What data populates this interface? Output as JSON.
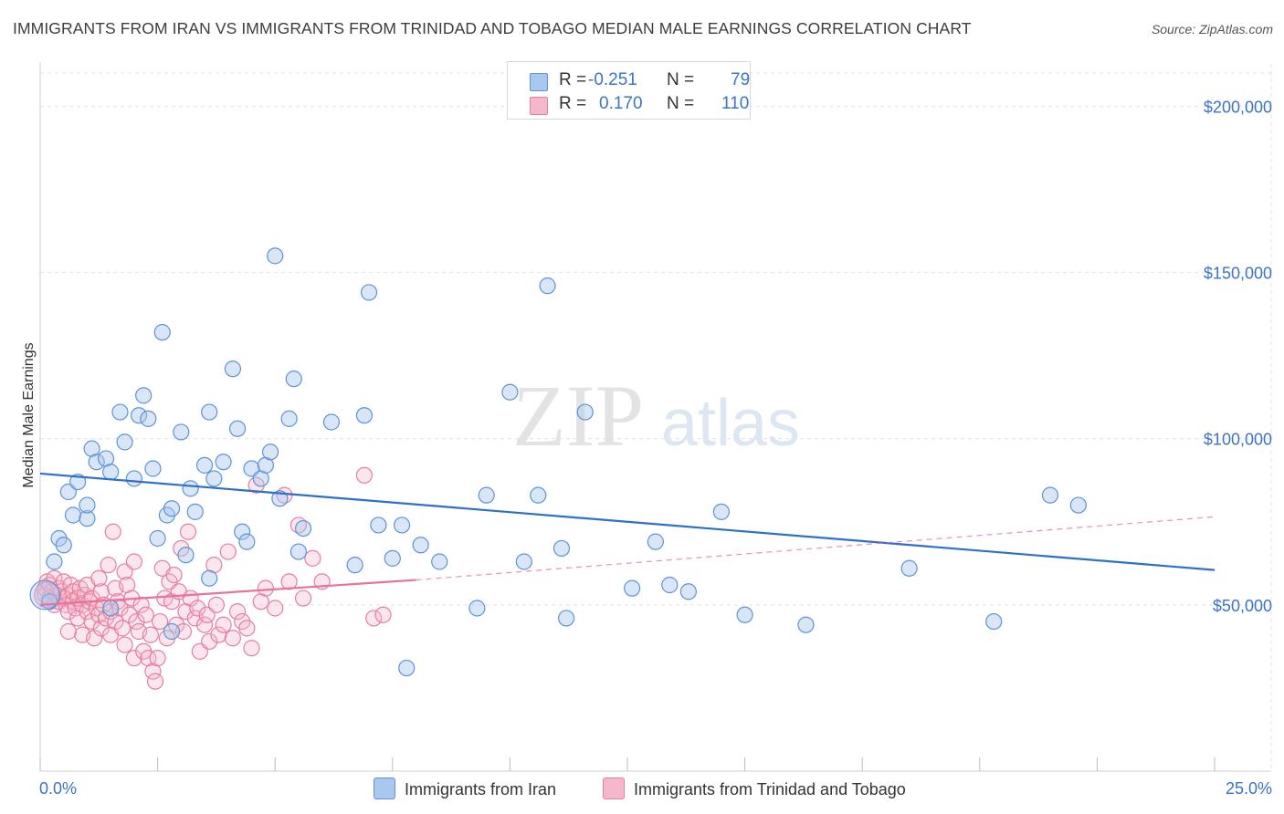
{
  "title": "IMMIGRANTS FROM IRAN VS IMMIGRANTS FROM TRINIDAD AND TOBAGO MEDIAN MALE EARNINGS CORRELATION CHART",
  "source": "Source: ZipAtlas.com",
  "watermark": {
    "zip": "ZIP",
    "atlas": "atlas"
  },
  "legend": {
    "r_label": "R =",
    "n_label": "N =",
    "iran": {
      "r": "-0.251",
      "n": "79"
    },
    "tt": {
      "r": "0.170",
      "n": "110"
    }
  },
  "bottom_legend": {
    "iran": "Immigrants from Iran",
    "tt": "Immigrants from Trinidad and Tobago"
  },
  "colors": {
    "iran_fill": "#a9c8ef",
    "iran_stroke": "#5e93d6",
    "iran_line": "#2f6fcc",
    "tt_fill": "#f7b7cb",
    "tt_stroke": "#e57fa0",
    "tt_line": "#e8729a",
    "axis_text": "#3a74c6"
  },
  "chart_data": {
    "type": "scatter",
    "title": "IMMIGRANTS FROM IRAN VS IMMIGRANTS FROM TRINIDAD AND TOBAGO MEDIAN MALE EARNINGS CORRELATION CHART",
    "xlabel": "",
    "ylabel": "Median Male Earnings",
    "xlim": [
      0,
      25
    ],
    "ylim": [
      0,
      210000
    ],
    "x_tick_labels": [
      "0.0%",
      "25.0%"
    ],
    "y_ticks": [
      50000,
      100000,
      150000,
      200000
    ],
    "y_tick_labels": [
      "$50,000",
      "$100,000",
      "$150,000",
      "$200,000"
    ],
    "grid": true,
    "series": [
      {
        "name": "Immigrants from Iran",
        "r": -0.251,
        "n": 79,
        "trend": {
          "x0": 0,
          "y0": 89500,
          "x1": 25,
          "y1": 60500
        },
        "points": [
          [
            0.2,
            51000
          ],
          [
            0.3,
            63000
          ],
          [
            0.4,
            70000
          ],
          [
            0.5,
            68000
          ],
          [
            0.6,
            84000
          ],
          [
            0.7,
            77000
          ],
          [
            0.8,
            87000
          ],
          [
            1.0,
            76000
          ],
          [
            1.0,
            80000
          ],
          [
            1.1,
            97000
          ],
          [
            1.2,
            93000
          ],
          [
            1.4,
            94000
          ],
          [
            1.5,
            90000
          ],
          [
            1.7,
            108000
          ],
          [
            1.8,
            99000
          ],
          [
            2.0,
            88000
          ],
          [
            2.1,
            107000
          ],
          [
            2.2,
            113000
          ],
          [
            2.3,
            106000
          ],
          [
            2.4,
            91000
          ],
          [
            2.5,
            70000
          ],
          [
            2.6,
            132000
          ],
          [
            2.7,
            77000
          ],
          [
            2.8,
            79000
          ],
          [
            3.0,
            102000
          ],
          [
            3.1,
            65000
          ],
          [
            3.2,
            85000
          ],
          [
            3.3,
            78000
          ],
          [
            3.5,
            92000
          ],
          [
            3.6,
            108000
          ],
          [
            3.7,
            88000
          ],
          [
            3.9,
            93000
          ],
          [
            4.1,
            121000
          ],
          [
            4.2,
            103000
          ],
          [
            4.3,
            72000
          ],
          [
            4.4,
            69000
          ],
          [
            4.5,
            91000
          ],
          [
            4.7,
            88000
          ],
          [
            4.8,
            92000
          ],
          [
            4.9,
            96000
          ],
          [
            5.0,
            155000
          ],
          [
            5.1,
            82000
          ],
          [
            5.3,
            106000
          ],
          [
            5.4,
            118000
          ],
          [
            5.5,
            66000
          ],
          [
            5.6,
            73000
          ],
          [
            6.2,
            105000
          ],
          [
            6.7,
            62000
          ],
          [
            6.9,
            107000
          ],
          [
            7.0,
            144000
          ],
          [
            7.2,
            74000
          ],
          [
            7.5,
            64000
          ],
          [
            7.7,
            74000
          ],
          [
            7.8,
            31000
          ],
          [
            8.1,
            68000
          ],
          [
            8.5,
            63000
          ],
          [
            9.3,
            49000
          ],
          [
            9.5,
            83000
          ],
          [
            10.0,
            114000
          ],
          [
            10.3,
            63000
          ],
          [
            10.6,
            83000
          ],
          [
            10.8,
            146000
          ],
          [
            11.1,
            67000
          ],
          [
            11.2,
            46000
          ],
          [
            11.6,
            108000
          ],
          [
            12.6,
            55000
          ],
          [
            13.1,
            69000
          ],
          [
            13.4,
            56000
          ],
          [
            13.8,
            54000
          ],
          [
            14.5,
            78000
          ],
          [
            15.0,
            47000
          ],
          [
            16.3,
            44000
          ],
          [
            18.5,
            61000
          ],
          [
            20.3,
            45000
          ],
          [
            21.5,
            83000
          ],
          [
            22.1,
            80000
          ],
          [
            1.5,
            49000
          ],
          [
            2.8,
            42000
          ],
          [
            3.6,
            58000
          ]
        ]
      },
      {
        "name": "Immigrants from Trinidad and Tobago",
        "r": 0.17,
        "n": 110,
        "trend": {
          "x0": 0,
          "y0": 50000,
          "x1": 8.0,
          "y1": 57500,
          "dashed_x1": 25,
          "dashed_y1": 76500
        },
        "points": [
          [
            0.1,
            55000
          ],
          [
            0.1,
            53000
          ],
          [
            0.15,
            57000
          ],
          [
            0.2,
            52000
          ],
          [
            0.2,
            56000
          ],
          [
            0.25,
            54000
          ],
          [
            0.3,
            50000
          ],
          [
            0.3,
            58000
          ],
          [
            0.35,
            53000
          ],
          [
            0.4,
            55000
          ],
          [
            0.4,
            51000
          ],
          [
            0.45,
            54000
          ],
          [
            0.5,
            57000
          ],
          [
            0.5,
            52000
          ],
          [
            0.55,
            50000
          ],
          [
            0.6,
            53000
          ],
          [
            0.6,
            48000
          ],
          [
            0.65,
            56000
          ],
          [
            0.7,
            51000
          ],
          [
            0.7,
            54000
          ],
          [
            0.75,
            49000
          ],
          [
            0.8,
            52000
          ],
          [
            0.8,
            46000
          ],
          [
            0.85,
            55000
          ],
          [
            0.9,
            50000
          ],
          [
            0.9,
            41000
          ],
          [
            0.95,
            53000
          ],
          [
            1.0,
            48000
          ],
          [
            1.0,
            56000
          ],
          [
            1.05,
            51000
          ],
          [
            1.1,
            45000
          ],
          [
            1.1,
            52000
          ],
          [
            1.15,
            40000
          ],
          [
            1.2,
            49000
          ],
          [
            1.25,
            47000
          ],
          [
            1.3,
            54000
          ],
          [
            1.3,
            43000
          ],
          [
            1.35,
            50000
          ],
          [
            1.4,
            46000
          ],
          [
            1.45,
            62000
          ],
          [
            1.5,
            48000
          ],
          [
            1.5,
            41000
          ],
          [
            1.55,
            72000
          ],
          [
            1.6,
            55000
          ],
          [
            1.6,
            45000
          ],
          [
            1.65,
            51000
          ],
          [
            1.7,
            49000
          ],
          [
            1.75,
            43000
          ],
          [
            1.8,
            60000
          ],
          [
            1.85,
            56000
          ],
          [
            1.9,
            47000
          ],
          [
            1.95,
            52000
          ],
          [
            2.0,
            34000
          ],
          [
            2.0,
            63000
          ],
          [
            2.05,
            45000
          ],
          [
            2.1,
            42000
          ],
          [
            2.15,
            50000
          ],
          [
            2.2,
            36000
          ],
          [
            2.25,
            47000
          ],
          [
            2.3,
            34000
          ],
          [
            2.35,
            41000
          ],
          [
            2.4,
            30000
          ],
          [
            2.45,
            27000
          ],
          [
            2.5,
            34000
          ],
          [
            2.55,
            45000
          ],
          [
            2.6,
            61000
          ],
          [
            2.65,
            52000
          ],
          [
            2.7,
            40000
          ],
          [
            2.75,
            57000
          ],
          [
            2.8,
            51000
          ],
          [
            2.85,
            59000
          ],
          [
            2.9,
            44000
          ],
          [
            3.0,
            67000
          ],
          [
            3.05,
            42000
          ],
          [
            3.1,
            48000
          ],
          [
            3.15,
            72000
          ],
          [
            3.2,
            52000
          ],
          [
            3.3,
            46000
          ],
          [
            3.35,
            49000
          ],
          [
            3.4,
            36000
          ],
          [
            3.5,
            44000
          ],
          [
            3.55,
            47000
          ],
          [
            3.6,
            39000
          ],
          [
            3.7,
            62000
          ],
          [
            3.75,
            50000
          ],
          [
            3.8,
            41000
          ],
          [
            3.9,
            44000
          ],
          [
            4.0,
            66000
          ],
          [
            4.1,
            40000
          ],
          [
            4.2,
            48000
          ],
          [
            4.3,
            45000
          ],
          [
            4.4,
            43000
          ],
          [
            4.5,
            37000
          ],
          [
            4.6,
            86000
          ],
          [
            4.7,
            51000
          ],
          [
            4.8,
            55000
          ],
          [
            5.0,
            49000
          ],
          [
            5.2,
            83000
          ],
          [
            5.3,
            57000
          ],
          [
            5.5,
            74000
          ],
          [
            5.6,
            52000
          ],
          [
            5.8,
            64000
          ],
          [
            6.0,
            57000
          ],
          [
            6.9,
            89000
          ],
          [
            7.1,
            46000
          ],
          [
            7.3,
            47000
          ],
          [
            1.8,
            38000
          ],
          [
            0.6,
            42000
          ],
          [
            2.95,
            54000
          ],
          [
            1.25,
            58000
          ]
        ]
      }
    ]
  }
}
